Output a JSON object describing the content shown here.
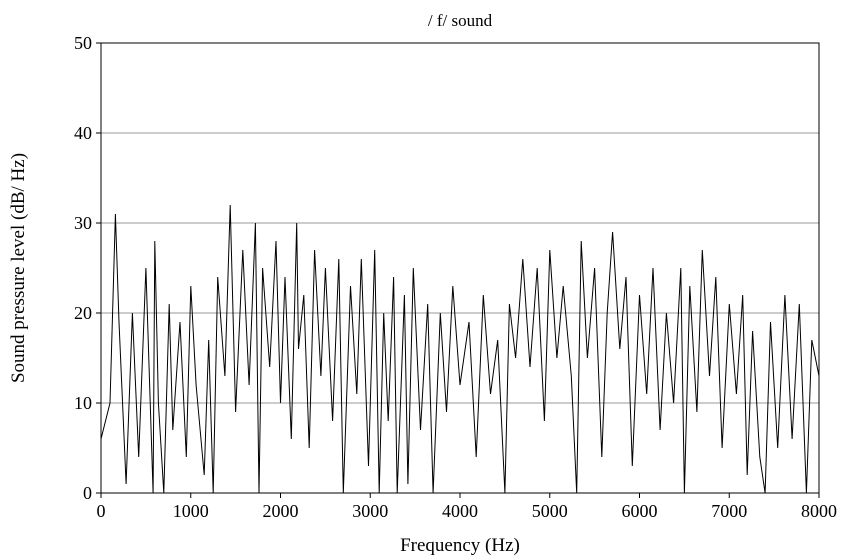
{
  "chart_data": {
    "type": "line",
    "title": "/ f/  sound",
    "xlabel": "Frequency (Hz)",
    "ylabel": "Sound pressure level (dB/ Hz)",
    "xlim": [
      0,
      8000
    ],
    "ylim": [
      0,
      50
    ],
    "x_ticks": [
      0,
      1000,
      2000,
      3000,
      4000,
      5000,
      6000,
      7000,
      8000
    ],
    "y_ticks": [
      0,
      10,
      20,
      30,
      40,
      50
    ],
    "grid": "horizontal",
    "legend": "none",
    "line_color": "#000000",
    "grid_color": "#999999",
    "series": [
      {
        "x": [
          0,
          100,
          160,
          200,
          280,
          350,
          420,
          500,
          580,
          600,
          640,
          700,
          760,
          800,
          880,
          950,
          1000,
          1060,
          1150,
          1200,
          1250,
          1300,
          1380,
          1440,
          1500,
          1580,
          1650,
          1720,
          1760,
          1800,
          1880,
          1950,
          2000,
          2050,
          2120,
          2180,
          2200,
          2260,
          2320,
          2380,
          2450,
          2500,
          2580,
          2650,
          2700,
          2780,
          2850,
          2900,
          2980,
          3050,
          3100,
          3150,
          3200,
          3260,
          3300,
          3380,
          3420,
          3480,
          3560,
          3640,
          3700,
          3780,
          3850,
          3920,
          4000,
          4100,
          4180,
          4260,
          4340,
          4420,
          4500,
          4550,
          4620,
          4700,
          4780,
          4860,
          4940,
          5000,
          5080,
          5150,
          5240,
          5300,
          5350,
          5420,
          5500,
          5580,
          5640,
          5700,
          5780,
          5850,
          5920,
          6000,
          6080,
          6150,
          6230,
          6300,
          6380,
          6460,
          6500,
          6560,
          6640,
          6700,
          6780,
          6850,
          6920,
          7000,
          7080,
          7150,
          7200,
          7260,
          7340,
          7400,
          7460,
          7540,
          7620,
          7700,
          7780,
          7860,
          7920,
          8000
        ],
        "y": [
          6,
          10,
          31,
          19,
          1,
          20,
          4,
          25,
          0,
          28,
          10,
          0,
          21,
          7,
          19,
          4,
          23,
          12,
          2,
          17,
          0,
          24,
          13,
          32,
          9,
          27,
          12,
          30,
          0,
          25,
          14,
          28,
          10,
          24,
          6,
          30,
          16,
          22,
          5,
          27,
          13,
          25,
          8,
          26,
          0,
          23,
          11,
          26,
          3,
          27,
          0,
          20,
          8,
          24,
          0,
          22,
          1,
          25,
          7,
          21,
          0,
          20,
          9,
          23,
          12,
          19,
          4,
          22,
          11,
          17,
          0,
          21,
          15,
          26,
          14,
          25,
          8,
          27,
          15,
          23,
          13,
          0,
          28,
          15,
          25,
          4,
          20,
          29,
          16,
          24,
          3,
          22,
          11,
          25,
          7,
          20,
          10,
          25,
          0,
          23,
          9,
          27,
          13,
          24,
          5,
          21,
          11,
          22,
          2,
          18,
          4,
          0,
          19,
          5,
          22,
          6,
          21,
          0,
          17,
          13
        ]
      }
    ]
  }
}
